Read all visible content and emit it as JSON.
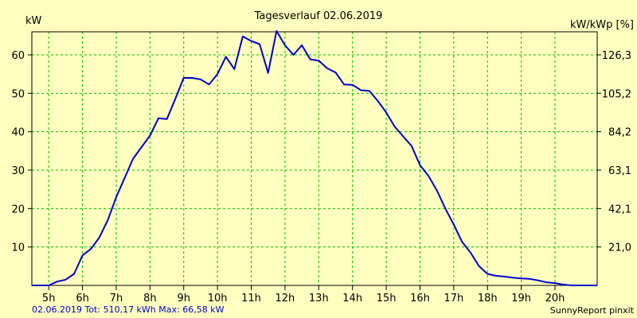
{
  "chart_data": {
    "type": "line",
    "title": "Tagesverlauf 02.06.2019",
    "ylabel_left": "kW",
    "ylabel_right": "kW/kWp [%]",
    "xlim": [
      4.5,
      21.25
    ],
    "ylim": [
      0,
      66
    ],
    "x_ticks": [
      {
        "x": 5,
        "label": "5h"
      },
      {
        "x": 6,
        "label": "6h"
      },
      {
        "x": 7,
        "label": "7h"
      },
      {
        "x": 8,
        "label": "8h"
      },
      {
        "x": 9,
        "label": "9h"
      },
      {
        "x": 10,
        "label": "10h"
      },
      {
        "x": 11,
        "label": "11h"
      },
      {
        "x": 12,
        "label": "12h"
      },
      {
        "x": 13,
        "label": "13h"
      },
      {
        "x": 14,
        "label": "14h"
      },
      {
        "x": 15,
        "label": "15h"
      },
      {
        "x": 16,
        "label": "16h"
      },
      {
        "x": 17,
        "label": "17h"
      },
      {
        "x": 18,
        "label": "18h"
      },
      {
        "x": 19,
        "label": "19h"
      },
      {
        "x": 20,
        "label": "20h"
      }
    ],
    "y_ticks_left": [
      {
        "y": 10,
        "label": "10"
      },
      {
        "y": 20,
        "label": "20"
      },
      {
        "y": 30,
        "label": "30"
      },
      {
        "y": 40,
        "label": "40"
      },
      {
        "y": 50,
        "label": "50"
      },
      {
        "y": 60,
        "label": "60"
      }
    ],
    "y_ticks_right": [
      {
        "y": 10,
        "label": "21,0"
      },
      {
        "y": 20,
        "label": "42,1"
      },
      {
        "y": 30,
        "label": "63,1"
      },
      {
        "y": 40,
        "label": "84,2"
      },
      {
        "y": 50,
        "label": "105,2"
      },
      {
        "y": 60,
        "label": "126,3"
      }
    ],
    "grid": true,
    "legend": "none",
    "series": [
      {
        "name": "kW",
        "color": "#0000cc",
        "points": [
          [
            4.5,
            0
          ],
          [
            5.0,
            0
          ],
          [
            5.25,
            1.0
          ],
          [
            5.5,
            1.5
          ],
          [
            5.75,
            3.0
          ],
          [
            6.0,
            7.8
          ],
          [
            6.25,
            9.5
          ],
          [
            6.5,
            12.5
          ],
          [
            6.75,
            17.0
          ],
          [
            7.0,
            23.0
          ],
          [
            7.25,
            28.0
          ],
          [
            7.5,
            33.0
          ],
          [
            7.75,
            36.0
          ],
          [
            8.0,
            39.0
          ],
          [
            8.25,
            43.5
          ],
          [
            8.5,
            43.3
          ],
          [
            8.75,
            48.5
          ],
          [
            9.0,
            54.0
          ],
          [
            9.25,
            54.0
          ],
          [
            9.5,
            53.6
          ],
          [
            9.75,
            52.3
          ],
          [
            10.0,
            55.0
          ],
          [
            10.25,
            59.5
          ],
          [
            10.5,
            56.3
          ],
          [
            10.75,
            64.8
          ],
          [
            11.0,
            63.6
          ],
          [
            11.25,
            62.8
          ],
          [
            11.5,
            55.3
          ],
          [
            11.75,
            66.2
          ],
          [
            12.0,
            62.5
          ],
          [
            12.25,
            60.0
          ],
          [
            12.5,
            62.5
          ],
          [
            12.75,
            58.8
          ],
          [
            13.0,
            58.5
          ],
          [
            13.25,
            56.5
          ],
          [
            13.5,
            55.4
          ],
          [
            13.75,
            52.3
          ],
          [
            14.0,
            52.2
          ],
          [
            14.25,
            50.8
          ],
          [
            14.5,
            50.6
          ],
          [
            14.75,
            48.0
          ],
          [
            15.0,
            45.0
          ],
          [
            15.25,
            41.3
          ],
          [
            15.5,
            38.8
          ],
          [
            15.75,
            36.3
          ],
          [
            16.0,
            31.3
          ],
          [
            16.25,
            28.5
          ],
          [
            16.5,
            24.7
          ],
          [
            16.75,
            20.0
          ],
          [
            17.0,
            15.8
          ],
          [
            17.25,
            11.3
          ],
          [
            17.5,
            8.5
          ],
          [
            17.75,
            5.0
          ],
          [
            18.0,
            3.0
          ],
          [
            18.25,
            2.5
          ],
          [
            18.5,
            2.3
          ],
          [
            18.75,
            2.0
          ],
          [
            19.0,
            1.8
          ],
          [
            19.25,
            1.7
          ],
          [
            19.5,
            1.3
          ],
          [
            19.75,
            0.8
          ],
          [
            20.0,
            0.6
          ],
          [
            20.25,
            0.2
          ],
          [
            20.5,
            0
          ],
          [
            21.25,
            0
          ]
        ]
      }
    ]
  },
  "footer": {
    "left": "02.06.2019 Tot: 510,17 kWh Max: 66,58 kW",
    "right": "SunnyReport pinxit"
  },
  "colors": {
    "background": "#ffffc0",
    "grid": "#00c000",
    "line": "#0000cc",
    "footer_left": "#0000cc"
  }
}
